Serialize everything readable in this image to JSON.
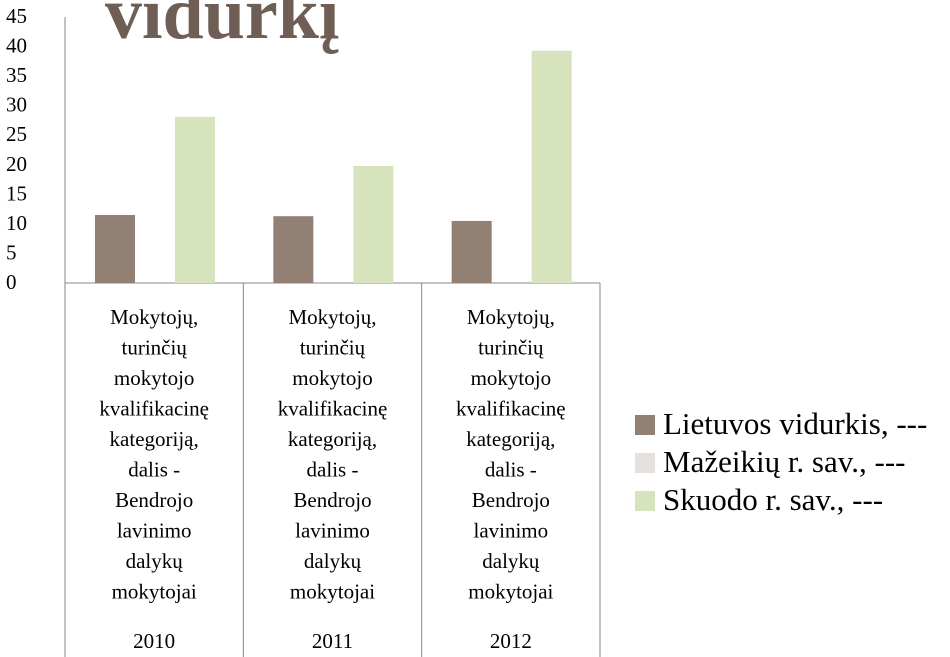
{
  "chart_data": {
    "type": "bar",
    "title": "vidurkį",
    "categories": [
      "2010",
      "2011",
      "2012"
    ],
    "category_labels": [
      "Mokytojų, turinčių mokytojo kvalifikacinę kategoriją, dalis - Bendrojo lavinimo dalykų mokytojai",
      "Mokytojų, turinčių mokytojo kvalifikacinę kategoriją, dalis - Bendrojo lavinimo dalykų mokytojai",
      "Mokytojų, turinčių mokytojo kvalifikacinę kategoriją, dalis - Bendrojo lavinimo dalykų mokytojai"
    ],
    "series": [
      {
        "name": "Lietuvos vidurkis, ---",
        "color": "#938074",
        "values": [
          11.5,
          11.3,
          10.5
        ]
      },
      {
        "name": "Mažeikių r. sav., ---",
        "color": "#e4e1df",
        "values": [
          null,
          null,
          null
        ]
      },
      {
        "name": "Skuodo r. sav., ---",
        "color": "#d6e3bd",
        "values": [
          28.1,
          19.8,
          39.3
        ]
      }
    ],
    "ylim": [
      0,
      45
    ],
    "yticks": [
      0,
      5,
      10,
      15,
      20,
      25,
      30,
      35,
      40,
      45
    ],
    "legend": "right"
  }
}
